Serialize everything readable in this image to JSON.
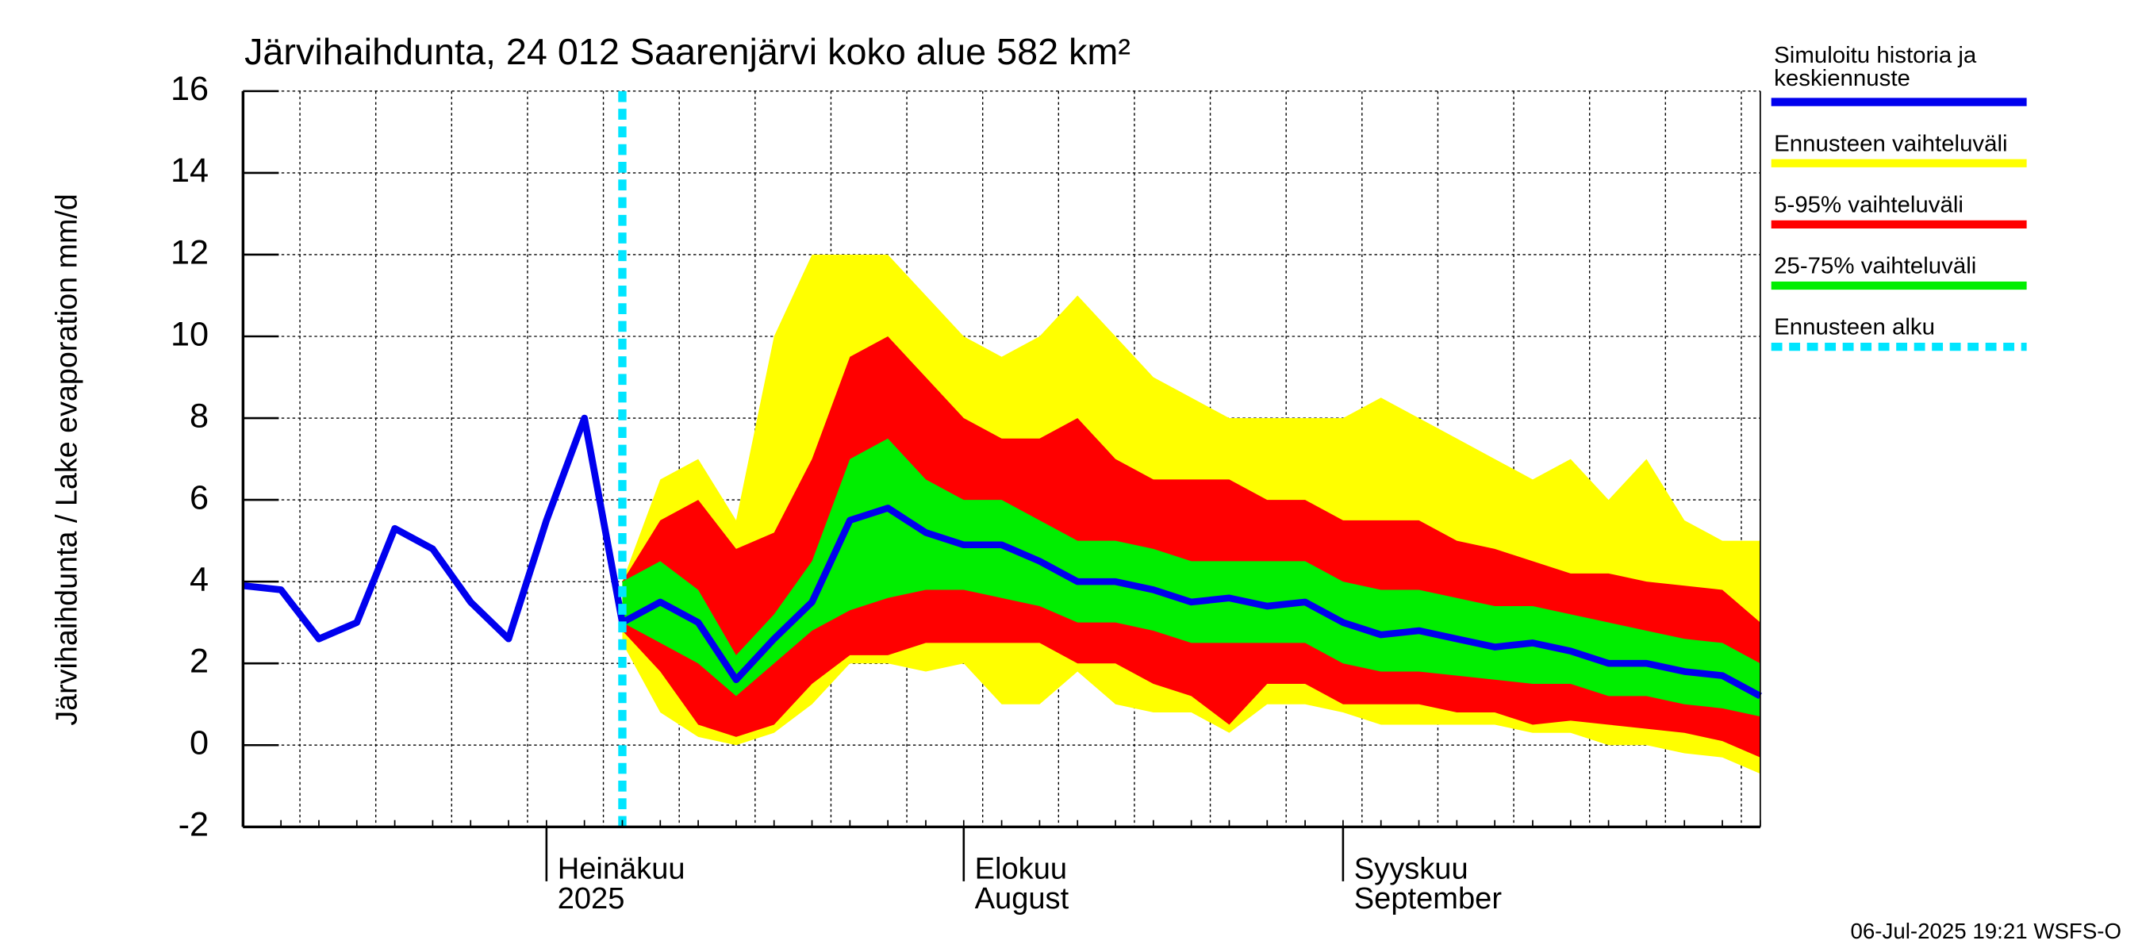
{
  "chart_data": {
    "type": "fan",
    "title": "Järvihaihdunta, 24 012 Saarenjärvi koko alue 582 km²",
    "y_label": "Järvihaihdunta / Lake evaporation   mm/d",
    "footer": "06-Jul-2025 19:21 WSFS-O",
    "categories": [
      null,
      null,
      null,
      null,
      null,
      null,
      null,
      null,
      "Heinäkuu\n2025",
      null,
      null,
      null,
      null,
      null,
      null,
      null,
      null,
      null,
      null,
      "Elokuu\nAugust",
      null,
      null,
      null,
      null,
      null,
      null,
      null,
      null,
      null,
      "Syyskuu\nSeptember",
      null,
      null,
      null,
      null,
      null,
      null,
      null,
      null,
      null,
      null,
      null
    ],
    "ylim": [
      -2,
      16
    ],
    "yticks": [
      -2,
      0,
      2,
      4,
      6,
      8,
      10,
      12,
      14,
      16
    ],
    "grid": true,
    "bands": [
      {
        "name": "Ennusteen vaihteluväli",
        "color": "#ffff00",
        "low": [
          null,
          null,
          null,
          null,
          null,
          null,
          null,
          null,
          null,
          null,
          2.5,
          0.8,
          0.2,
          0,
          0.3,
          1,
          2,
          2,
          1.8,
          2,
          1,
          1,
          1.8,
          1,
          0.8,
          0.8,
          0.3,
          1,
          1,
          0.8,
          0.5,
          0.5,
          0.5,
          0.5,
          0.3,
          0.3,
          0,
          0,
          -0.2,
          -0.3,
          -0.7
        ],
        "high": [
          null,
          null,
          null,
          null,
          null,
          null,
          null,
          null,
          null,
          null,
          4,
          6.5,
          7,
          5.5,
          10,
          12,
          12,
          12,
          11,
          10,
          9.5,
          10,
          11,
          10,
          9,
          8.5,
          8,
          8,
          8,
          8,
          8.5,
          8,
          7.5,
          7,
          6.5,
          7,
          6,
          7,
          5.5,
          5,
          5
        ]
      },
      {
        "name": "5-95% vaihteluväli",
        "color": "#ff0000",
        "low": [
          null,
          null,
          null,
          null,
          null,
          null,
          null,
          null,
          null,
          null,
          2.8,
          1.8,
          0.5,
          0.2,
          0.5,
          1.5,
          2.2,
          2.2,
          2.5,
          2.5,
          2.5,
          2.5,
          2,
          2,
          1.5,
          1.2,
          0.5,
          1.5,
          1.5,
          1,
          1,
          1,
          0.8,
          0.8,
          0.5,
          0.6,
          0.5,
          0.4,
          0.3,
          0.1,
          -0.3
        ],
        "high": [
          null,
          null,
          null,
          null,
          null,
          null,
          null,
          null,
          null,
          null,
          4,
          5.5,
          6,
          4.8,
          5.2,
          7,
          9.5,
          10,
          9,
          8,
          7.5,
          7.5,
          8,
          7,
          6.5,
          6.5,
          6.5,
          6,
          6,
          5.5,
          5.5,
          5.5,
          5,
          4.8,
          4.5,
          4.2,
          4.2,
          4,
          3.9,
          3.8,
          3
        ]
      },
      {
        "name": "25-75% vaihteluväli",
        "color": "#00ee00",
        "low": [
          null,
          null,
          null,
          null,
          null,
          null,
          null,
          null,
          null,
          null,
          3,
          2.5,
          2,
          1.2,
          2,
          2.8,
          3.3,
          3.6,
          3.8,
          3.8,
          3.6,
          3.4,
          3,
          3,
          2.8,
          2.5,
          2.5,
          2.5,
          2.5,
          2,
          1.8,
          1.8,
          1.7,
          1.6,
          1.5,
          1.5,
          1.2,
          1.2,
          1,
          0.9,
          0.7
        ],
        "high": [
          null,
          null,
          null,
          null,
          null,
          null,
          null,
          null,
          null,
          null,
          4,
          4.5,
          3.8,
          2.2,
          3.2,
          4.5,
          7,
          7.5,
          6.5,
          6,
          6,
          5.5,
          5,
          5,
          4.8,
          4.5,
          4.5,
          4.5,
          4.5,
          4,
          3.8,
          3.8,
          3.6,
          3.4,
          3.4,
          3.2,
          3,
          2.8,
          2.6,
          2.5,
          2
        ]
      }
    ],
    "series": [
      {
        "name": "Simuloitu historia ja\nkeskiennuste",
        "color": "#0000ee",
        "values": [
          3.9,
          3.8,
          2.6,
          3,
          5.3,
          4.8,
          3.5,
          2.6,
          5.5,
          8,
          3,
          3.5,
          3,
          1.6,
          2.6,
          3.5,
          5.5,
          5.8,
          5.2,
          4.9,
          4.9,
          4.5,
          4,
          4,
          3.8,
          3.5,
          3.6,
          3.4,
          3.5,
          3,
          2.7,
          2.8,
          2.6,
          2.4,
          2.5,
          2.3,
          2,
          2,
          1.8,
          1.7,
          1.2
        ]
      }
    ],
    "forecast_start": {
      "name": "Ennusteen alku",
      "color": "#00e5ff",
      "index": 10
    }
  }
}
